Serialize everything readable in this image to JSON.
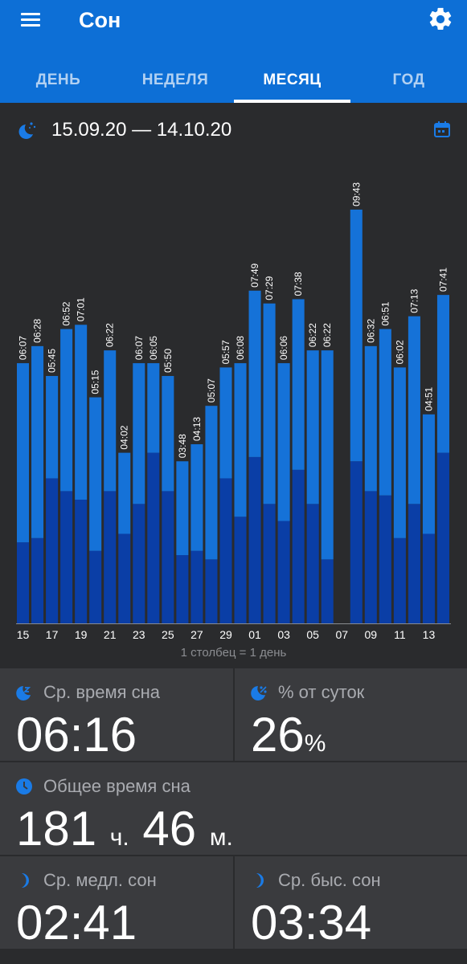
{
  "header": {
    "title": "Сон"
  },
  "tabs": [
    {
      "label": "ДЕНЬ"
    },
    {
      "label": "НЕДЕЛЯ"
    },
    {
      "label": "МЕСЯЦ",
      "active": true
    },
    {
      "label": "ГОД"
    }
  ],
  "range": {
    "label": "15.09.20 — 14.10.20"
  },
  "colors": {
    "header": "#0d6fd6",
    "bar_light": "#1572d8",
    "bar_deep": "#0a3ea6",
    "background": "#2a2b2d",
    "card": "#3a3b3e"
  },
  "chart_data": {
    "type": "bar",
    "stacked": true,
    "categories": [
      "15",
      "16",
      "17",
      "18",
      "19",
      "20",
      "21",
      "22",
      "23",
      "24",
      "25",
      "26",
      "27",
      "28",
      "29",
      "30",
      "01",
      "02",
      "03",
      "04",
      "05",
      "06",
      "07",
      "08",
      "09",
      "10",
      "11",
      "12",
      "13",
      "14"
    ],
    "x_tick_labels": [
      "15",
      "17",
      "19",
      "21",
      "23",
      "25",
      "27",
      "29",
      "01",
      "03",
      "05",
      "07",
      "09",
      "11",
      "13"
    ],
    "data_labels": [
      "06:07",
      "06:28",
      "05:45",
      "06:52",
      "07:01",
      "05:15",
      "06:22",
      "04:02",
      "06:07",
      "06:05",
      "05:50",
      "03:48",
      "04:13",
      "05:07",
      "05:57",
      "06:08",
      "07:49",
      "07:29",
      "06:06",
      "07:38",
      "06:22",
      "06:22",
      "",
      "09:43",
      "06:32",
      "06:51",
      "06:02",
      "07:13",
      "04:51",
      "07:41"
    ],
    "series": [
      {
        "name": "deep",
        "values": [
          1.9,
          2.0,
          3.4,
          3.1,
          2.9,
          1.7,
          3.1,
          2.1,
          2.8,
          4.0,
          3.1,
          1.6,
          1.7,
          1.5,
          3.4,
          2.5,
          3.9,
          2.8,
          2.4,
          3.6,
          2.8,
          1.5,
          0,
          3.8,
          3.1,
          3.0,
          2.0,
          2.8,
          2.1,
          4.0
        ]
      },
      {
        "name": "light",
        "values": [
          4.2,
          4.5,
          2.4,
          3.8,
          4.1,
          3.6,
          3.3,
          1.9,
          3.3,
          2.1,
          2.7,
          2.2,
          2.5,
          3.6,
          2.6,
          3.6,
          3.9,
          4.7,
          3.7,
          4.0,
          3.6,
          4.9,
          0,
          5.9,
          3.4,
          3.9,
          4.0,
          4.4,
          2.8,
          3.7
        ]
      }
    ],
    "note": "1 столбец = 1 день"
  },
  "stats": {
    "avg_sleep": {
      "label": "Ср. время сна",
      "value": "06:16",
      "icon": "moon-zz-icon"
    },
    "percent_day": {
      "label": "% от суток",
      "value": "26",
      "unit": "%",
      "icon": "moon-percent-icon"
    },
    "total_sleep": {
      "label": "Общее время сна",
      "hours": "181",
      "hours_unit": "ч.",
      "minutes": "46",
      "minutes_unit": "м.",
      "icon": "clock-icon"
    },
    "avg_deep": {
      "label": "Ср. медл. сон",
      "value": "02:41",
      "icon": "moon-icon"
    },
    "avg_rem": {
      "label": "Ср. быс. сон",
      "value": "03:34",
      "icon": "moon-icon"
    }
  }
}
